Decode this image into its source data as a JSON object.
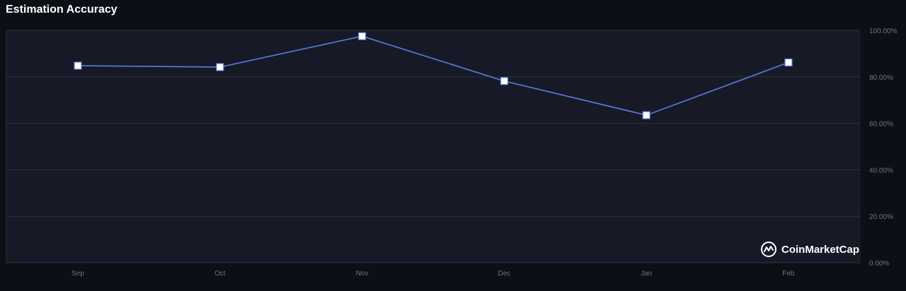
{
  "header": {
    "title": "Estimation Accuracy"
  },
  "watermark": {
    "text": "CoinMarketCap",
    "icon": "coinmarketcap-logo-icon"
  },
  "colors": {
    "background": "#0d0f16",
    "plot_background": "#171a26",
    "line": "#5b7de0",
    "marker_fill": "#ffffff",
    "grid": "#2b3040",
    "tick_text": "#6f7480"
  },
  "chart_data": {
    "type": "line",
    "title": "Estimation Accuracy",
    "categories": [
      "Sep",
      "Oct",
      "Nov",
      "Dec",
      "Jan",
      "Feb"
    ],
    "series": [
      {
        "values": [
          84.8,
          84.2,
          97.5,
          78.2,
          63.5,
          86.2
        ]
      }
    ],
    "yticks": [
      "0.00%",
      "20.00%",
      "40.00%",
      "60.00%",
      "80.00%",
      "100.00%"
    ],
    "ylim": [
      0,
      100
    ],
    "y_axis_side": "right",
    "marker": "square",
    "grid": true,
    "legend": "none"
  }
}
